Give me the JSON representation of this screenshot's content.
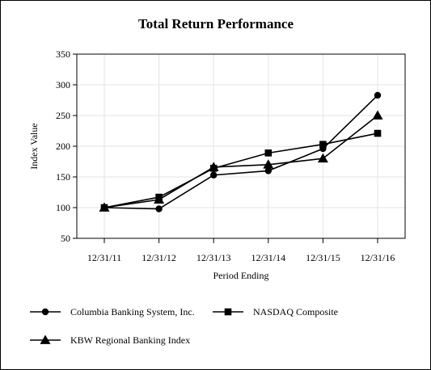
{
  "chart_data": {
    "type": "line",
    "title": "Total Return Performance",
    "xlabel": "Period Ending",
    "ylabel": "Index Value",
    "categories": [
      "12/31/11",
      "12/31/12",
      "12/31/13",
      "12/31/14",
      "12/31/15",
      "12/31/16"
    ],
    "ylim": [
      50,
      350
    ],
    "yticks": [
      50,
      100,
      150,
      200,
      250,
      300,
      350
    ],
    "grid": true,
    "legend_position": "bottom",
    "series": [
      {
        "name": "Columbia Banking System, Inc.",
        "marker": "circle",
        "color": "#000000",
        "values": [
          100,
          98,
          153,
          160,
          196,
          283
        ]
      },
      {
        "name": "NASDAQ Composite",
        "marker": "square",
        "color": "#000000",
        "values": [
          100,
          117,
          164,
          189,
          203,
          221
        ]
      },
      {
        "name": "KBW Regional Banking Index",
        "marker": "triangle",
        "color": "#000000",
        "values": [
          100,
          113,
          166,
          170,
          180,
          250
        ]
      }
    ]
  }
}
